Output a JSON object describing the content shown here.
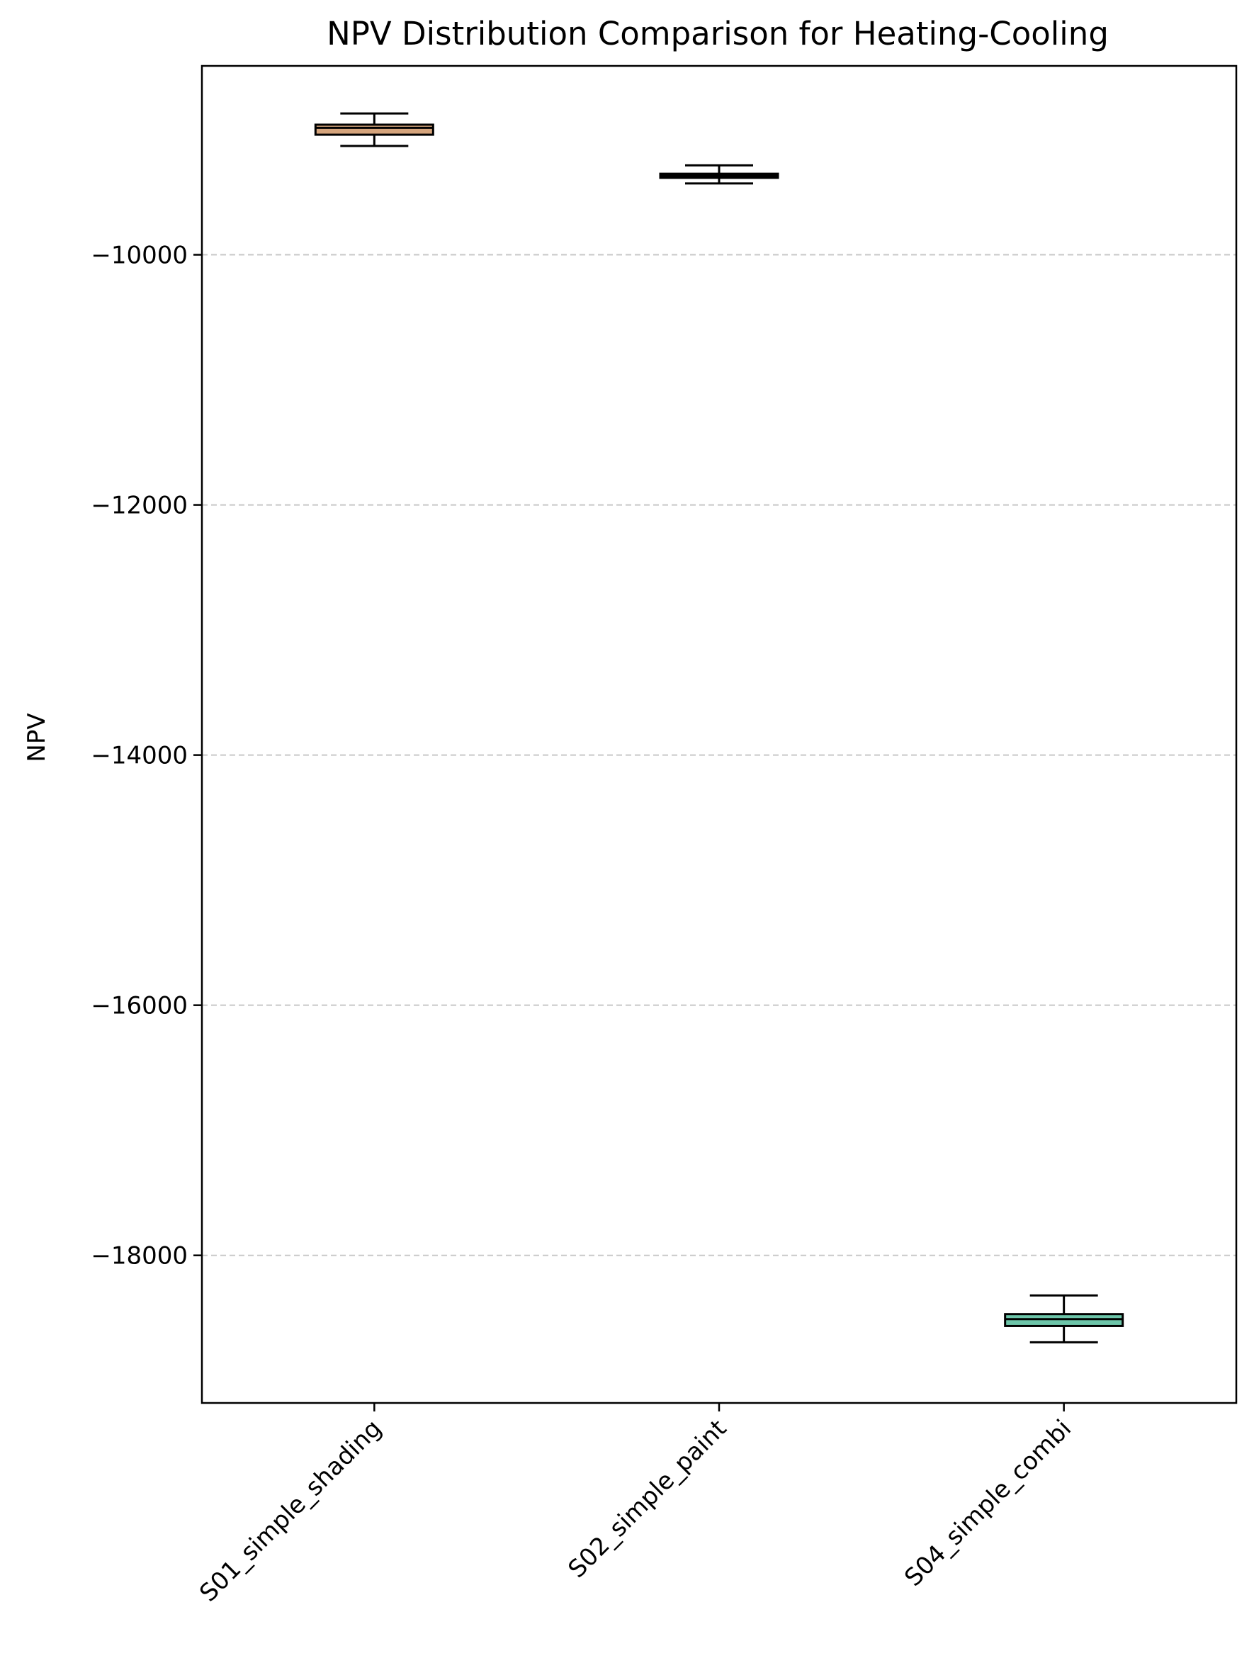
{
  "chart_data": {
    "type": "box",
    "title": "NPV Distribution Comparison for Heating-Cooling",
    "xlabel": "",
    "ylabel": "NPV",
    "ylim": [
      -19180,
      -8490
    ],
    "yticks": [
      -10000,
      -12000,
      -14000,
      -16000,
      -18000
    ],
    "ytick_labels": [
      "−10000",
      "−12000",
      "−14000",
      "−16000",
      "−18000"
    ],
    "grid": {
      "axis": "y",
      "style": "dashed",
      "on": true
    },
    "categories": [
      "S01_simple_shading",
      "S02_simple_paint",
      "S04_simple_combi"
    ],
    "boxes": [
      {
        "name": "S01_simple_shading",
        "whislo": -9130,
        "q1": -9040,
        "med": -8985,
        "q3": -8960,
        "whishi": -8870,
        "color": "#d5a47c"
      },
      {
        "name": "S02_simple_paint",
        "whislo": -9430,
        "q1": -9385,
        "med": -9368,
        "q3": -9352,
        "whishi": -9285,
        "color": "#e2e2e2"
      },
      {
        "name": "S04_simple_combi",
        "whislo": -18695,
        "q1": -18565,
        "med": -18510,
        "q3": -18470,
        "whishi": -18320,
        "color": "#6dc5a9"
      }
    ]
  }
}
